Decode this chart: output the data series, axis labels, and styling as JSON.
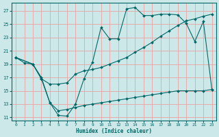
{
  "xlabel": "Humidex (Indice chaleur)",
  "bg_color": "#cce8e8",
  "grid_color": "#e8aaaa",
  "line_color": "#006868",
  "ylim": [
    10.5,
    28.2
  ],
  "xlim": [
    -0.5,
    23.5
  ],
  "yticks": [
    11,
    13,
    15,
    17,
    19,
    21,
    23,
    25,
    27
  ],
  "xticks": [
    0,
    1,
    2,
    3,
    4,
    5,
    6,
    7,
    8,
    9,
    10,
    11,
    12,
    13,
    14,
    15,
    16,
    17,
    18,
    19,
    20,
    21,
    22,
    23
  ],
  "line1_x": [
    0,
    1,
    2,
    3,
    4,
    5,
    6,
    7,
    8,
    9,
    10,
    11,
    12,
    13,
    14,
    15,
    16,
    17,
    18,
    19,
    20,
    21,
    22,
    23
  ],
  "line1_y": [
    20.0,
    19.2,
    19.0,
    17.0,
    13.2,
    11.3,
    11.2,
    13.0,
    16.8,
    19.3,
    24.5,
    22.8,
    22.8,
    27.3,
    27.5,
    26.3,
    26.3,
    26.5,
    26.5,
    26.4,
    25.1,
    22.4,
    25.4,
    15.2
  ],
  "line2_x": [
    0,
    2,
    3,
    4,
    5,
    6,
    7,
    8,
    9,
    10,
    11,
    12,
    13,
    14,
    15,
    16,
    17,
    18,
    19,
    20,
    21,
    22,
    23
  ],
  "line2_y": [
    20.0,
    19.0,
    16.8,
    16.0,
    16.0,
    16.2,
    17.5,
    18.0,
    18.2,
    18.5,
    19.0,
    19.5,
    20.0,
    20.8,
    21.5,
    22.3,
    23.2,
    24.0,
    24.8,
    25.5,
    25.8,
    26.2,
    26.5
  ],
  "line3_x": [
    0,
    2,
    3,
    4,
    5,
    6,
    7,
    8,
    9,
    10,
    11,
    12,
    13,
    14,
    15,
    16,
    17,
    18,
    19,
    20,
    21,
    22,
    23
  ],
  "line3_y": [
    20.0,
    19.0,
    16.8,
    13.2,
    12.0,
    12.2,
    12.5,
    12.8,
    13.0,
    13.2,
    13.4,
    13.6,
    13.8,
    14.0,
    14.2,
    14.4,
    14.6,
    14.8,
    15.0,
    15.0,
    15.0,
    15.0,
    15.2
  ]
}
